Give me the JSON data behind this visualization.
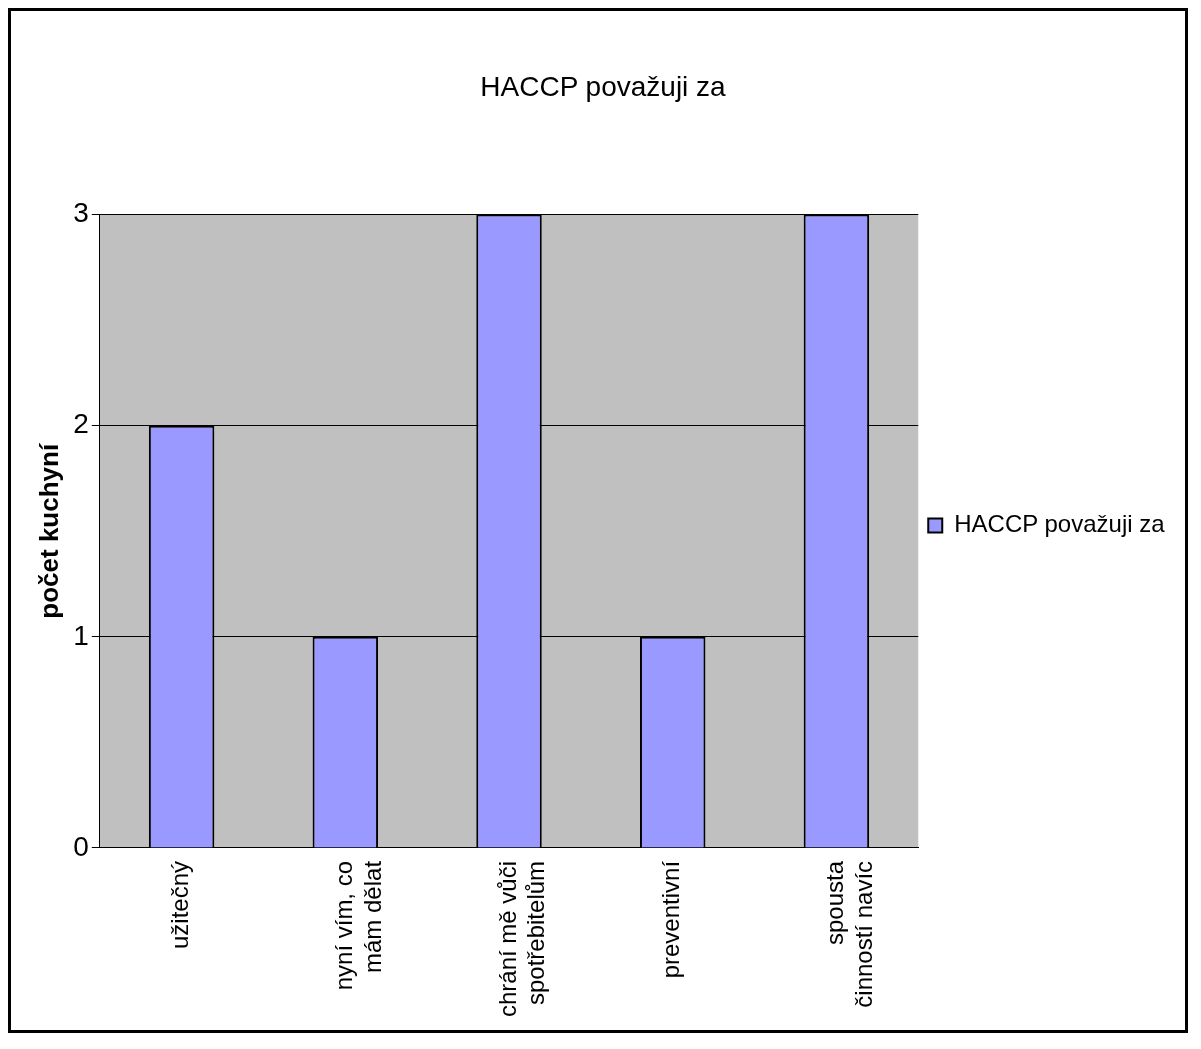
{
  "chart_data": {
    "type": "bar",
    "title": "HACCP považuji za",
    "ylabel": "počet kuchyní",
    "categories": [
      "užitečný",
      "nyní vím, co mám dělat",
      "chrání mě vůči spotřebitelům",
      "preventivní",
      "spousta činností navíc"
    ],
    "series": [
      {
        "name": "HACCP považuji za",
        "color": "#9999ff",
        "values": [
          2,
          1,
          3,
          1,
          3
        ]
      }
    ],
    "ylim": [
      0,
      3
    ],
    "yticks": [
      0,
      1,
      2,
      3
    ],
    "grid": "y",
    "legend": "right"
  }
}
